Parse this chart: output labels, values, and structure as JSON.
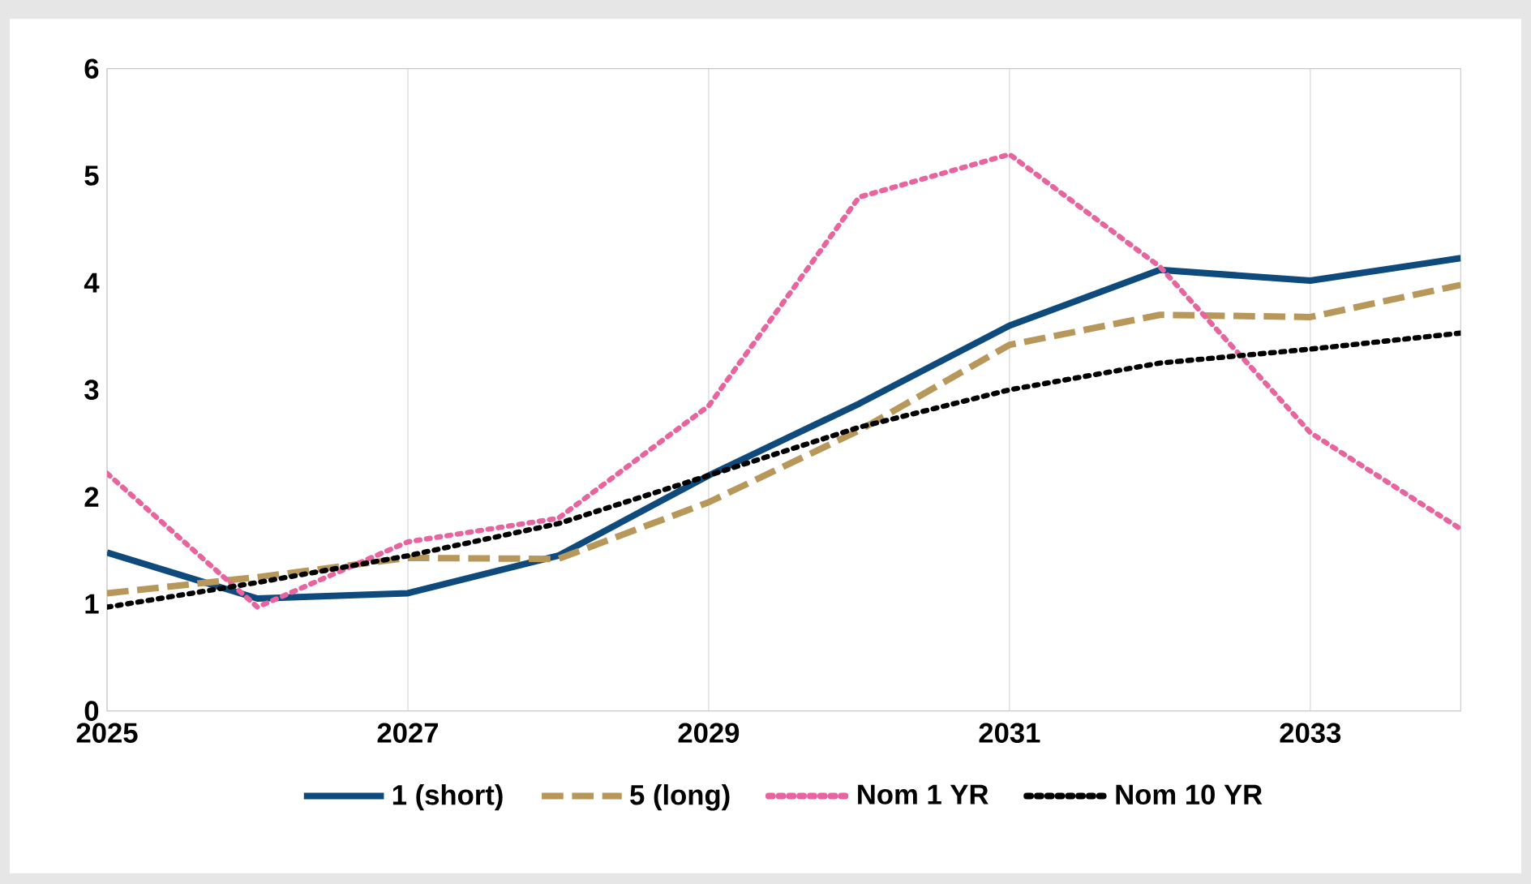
{
  "chart_data": {
    "type": "line",
    "x": [
      2025,
      2026,
      2027,
      2028,
      2029,
      2030,
      2031,
      2032,
      2033,
      2034
    ],
    "series": [
      {
        "name": "1 (short)",
        "color": "#0e4a7c",
        "line_style": "solid",
        "values": [
          1.48,
          1.05,
          1.1,
          1.45,
          2.2,
          2.87,
          3.6,
          4.12,
          4.02,
          4.23
        ]
      },
      {
        "name": "5 (long)",
        "color": "#b8975a",
        "line_style": "dashed",
        "values": [
          1.1,
          1.25,
          1.43,
          1.42,
          1.95,
          2.62,
          3.42,
          3.7,
          3.68,
          3.98
        ]
      },
      {
        "name": "Nom 1 YR",
        "color": "#e8649e",
        "line_style": "dotted",
        "values": [
          2.22,
          0.97,
          1.58,
          1.8,
          2.85,
          4.8,
          5.2,
          4.15,
          2.6,
          1.7
        ]
      },
      {
        "name": "Nom 10 YR",
        "color": "#000000",
        "line_style": "dotted",
        "values": [
          0.97,
          1.2,
          1.45,
          1.75,
          2.2,
          2.65,
          3.0,
          3.25,
          3.38,
          3.53
        ]
      }
    ],
    "xlim": [
      2025,
      2034
    ],
    "xticks": [
      2025,
      2027,
      2029,
      2031,
      2033
    ],
    "ylim": [
      0,
      6
    ],
    "yticks": [
      0,
      1,
      2,
      3,
      4,
      5,
      6
    ],
    "grid": "x",
    "legend": "bottom",
    "marker": "none"
  }
}
